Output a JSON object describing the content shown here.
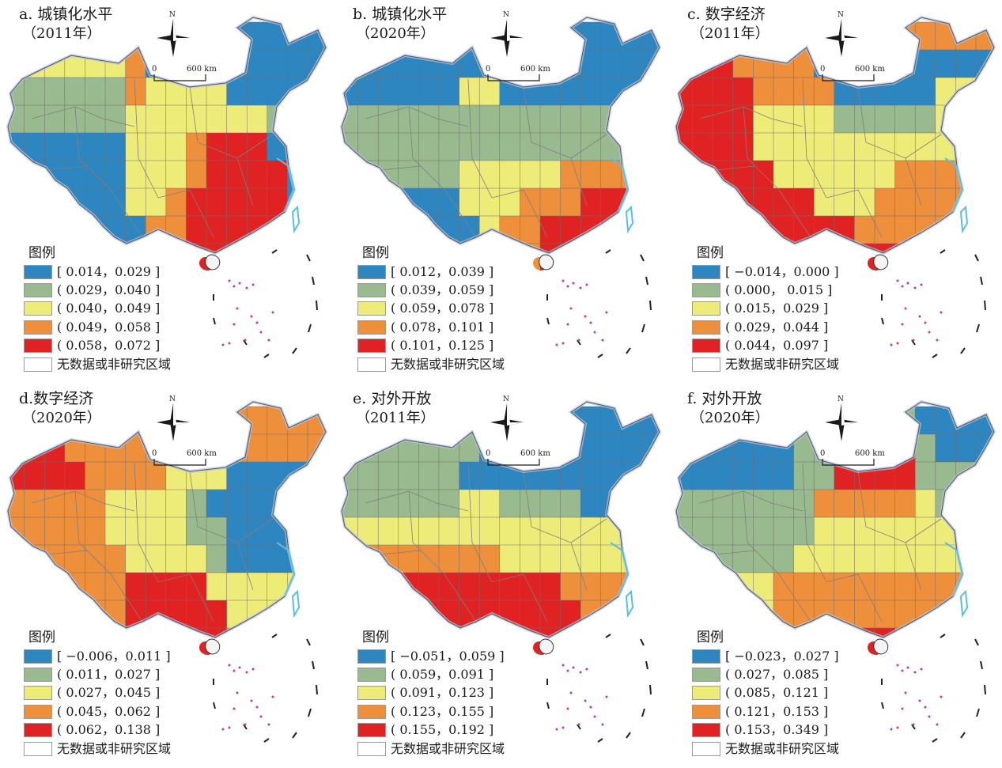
{
  "colors": {
    "class_1": "#2e86c1",
    "class_2": "#99b98f",
    "class_3": "#eeec78",
    "class_4": "#ee8f3c",
    "class_5": "#e02222",
    "no_data": "#ffffff",
    "boundary": "#7f7f7f",
    "islands": "#c8379c",
    "coast": "#58bfe0"
  },
  "common": {
    "north_label": "N",
    "scale_zero": "0",
    "scale_km": "600 km",
    "legend_title": "图例",
    "no_data_label": "无数据或非研究区域"
  },
  "panels": [
    {
      "title": "a. 城镇化水平",
      "subtitle": "（2011年）",
      "legend": [
        "[ 0.014，0.029 ]",
        "( 0.029，0.040 ]",
        "( 0.040，0.049 ]",
        "( 0.049，0.058 ]",
        "( 0.058，0.072 ]"
      ],
      "pattern": [
        "4444444111111111",
        "3333334111111111",
        "2222224333311111",
        "2222223333333211",
        "1111113334555111",
        "1111113334555511",
        "1111113345555511",
        "1111111445555511",
        "0000000445555000"
      ]
    },
    {
      "title": "b. 城镇化水平",
      "subtitle": "（2020年）",
      "legend": [
        "[ 0.012，0.039 ]",
        "( 0.039，0.059 ]",
        "( 0.059，0.078 ]",
        "( 0.078，0.101 ]",
        "( 0.101，0.125 ]"
      ],
      "pattern": [
        "2222222211111111",
        "1111111111111111",
        "1111113311111111",
        "2222222222222211",
        "2222222222222222",
        "2222223333344442",
        "1111113334445552",
        "1111111344555553",
        "0000000044555000"
      ]
    },
    {
      "title": "c. 数字经济",
      "subtitle": "（2011年）",
      "legend": [
        "[ −0.014，0.000 ]",
        "( 0.000， 0.015 ]",
        "( 0.015，0.029 ]",
        "( 0.029，0.044 ]",
        "( 0.044，0.097 ]"
      ],
      "pattern": [
        "4444444444444444",
        "5554444111111111",
        "5555444411111333",
        "5555333322222333",
        "5555333333333333",
        "5555533333344444",
        "5555555333444444",
        "4455555554444444",
        "0000000555555000"
      ]
    },
    {
      "title": "d.数字经济",
      "subtitle": "（2020年）",
      "legend": [
        "[ −0.006，0.011 ]",
        "( 0.011，0.027 ]",
        "( 0.027，0.045 ]",
        "( 0.045，0.062 ]",
        "( 0.062，0.138 ]"
      ],
      "pattern": [
        "4444444444444444",
        "5554444444444444",
        "5555444433311111",
        "4444433332111111",
        "4444433332211111",
        "4444443333211111",
        "4444445555333333",
        "4444445555533333",
        "0000000555544000"
      ]
    },
    {
      "title": "e. 对外开放",
      "subtitle": "（2011年）",
      "legend": [
        "[ −0.051，0.059 ]",
        "( 0.059，0.091 ]",
        "( 0.091，0.123 ]",
        "( 0.123，0.155 ]",
        "( 0.155，0.192 ]"
      ],
      "pattern": [
        "1111111111111111",
        "2222222111111111",
        "2222221111111111",
        "2222223322221111",
        "3333333333333333",
        "4444444433333333",
        "4455555555544444",
        "4455555555554444",
        "0000000555555000"
      ]
    },
    {
      "title": "f. 对外开放",
      "subtitle": "（2020年）",
      "legend": [
        "[ −0.023，0.027 ]",
        "( 0.027，0.085 ]",
        "( 0.085，0.121 ]",
        "( 0.121，0.153 ]",
        "( 0.153，0.349 ]"
      ],
      "pattern": [
        "3333333222221111",
        "1111112225552111",
        "1111112255552222",
        "2222222444443222",
        "2222222333333333",
        "2222223333333333",
        "1133344444444444",
        "1133344444444444",
        "0000000555544000"
      ]
    }
  ]
}
